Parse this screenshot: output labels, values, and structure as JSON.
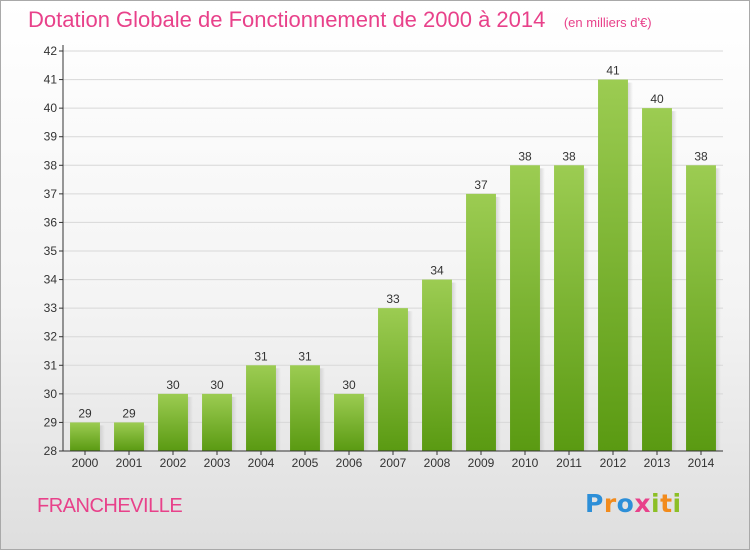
{
  "header": {
    "title": "Dotation Globale de Fonctionnement de 2000 à 2014",
    "subtitle": "(en milliers d'€)"
  },
  "footer": {
    "place_name": "FRANCHEVILLE",
    "logo_text": "Proxiti"
  },
  "colors": {
    "title": "#e8418a",
    "bar_top": "#9ccc52",
    "bar_bottom": "#5a9a12",
    "grid": "#d8d8d8",
    "axis": "#333333",
    "text": "#333333"
  },
  "chart_data": {
    "type": "bar",
    "title": "Dotation Globale de Fonctionnement de 2000 à 2014",
    "subtitle": "(en milliers d'€)",
    "xlabel": "",
    "ylabel": "",
    "categories": [
      "2000",
      "2001",
      "2002",
      "2003",
      "2004",
      "2005",
      "2006",
      "2007",
      "2008",
      "2009",
      "2010",
      "2011",
      "2012",
      "2013",
      "2014"
    ],
    "values": [
      29,
      29,
      30,
      30,
      31,
      31,
      30,
      33,
      34,
      37,
      38,
      38,
      41,
      40,
      38
    ],
    "ylim": [
      28,
      42
    ],
    "yticks": [
      28,
      29,
      30,
      31,
      32,
      33,
      34,
      35,
      36,
      37,
      38,
      39,
      40,
      41,
      42
    ],
    "grid": true,
    "legend": "none"
  }
}
